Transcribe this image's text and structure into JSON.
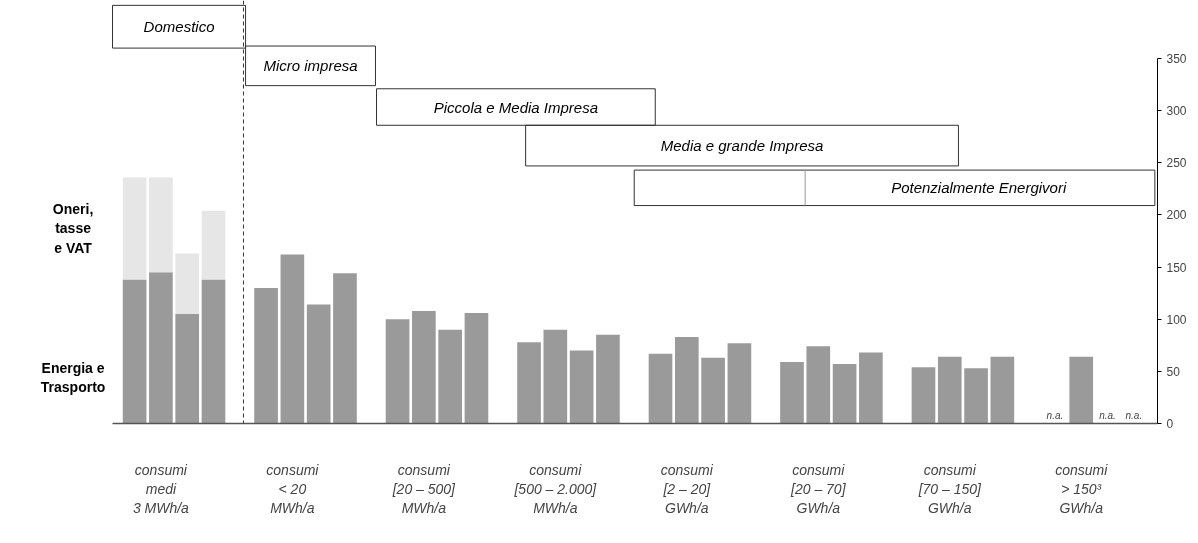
{
  "chart_data": {
    "type": "bar",
    "categories": [
      null,
      "consumi\nmedi\n3 MWh/a",
      null,
      null,
      null,
      null,
      "consumi\n< 20\nMWh/a",
      null,
      null,
      null,
      null,
      "consumi\n[20 – 500]\nMWh/a",
      null,
      null,
      null,
      null,
      "consumi\n[500 – 2.000]\nMWh/a",
      null,
      null,
      null,
      null,
      "consumi\n[2 – 20]\nGWh/a",
      null,
      null,
      null,
      null,
      "consumi\n[20 – 70]\nGWh/a",
      null,
      null,
      null,
      null,
      "consumi\n[70 – 150]\nGWh/a",
      null,
      null,
      null,
      null,
      "consumi\n> 150³\nGWh/a",
      null,
      null
    ],
    "series": [
      {
        "name": "Energia e\nTrasporto",
        "color": "#9a9a9a",
        "values": [
          138,
          145,
          105,
          138,
          null,
          130,
          162,
          114,
          144,
          null,
          100,
          108,
          90,
          106,
          null,
          78,
          90,
          70,
          85,
          null,
          67,
          83,
          63,
          77,
          null,
          59,
          74,
          57,
          68,
          null,
          54,
          64,
          53,
          64,
          null,
          null,
          64,
          null,
          null
        ],
        "value_labels": [
          null,
          null,
          null,
          null,
          null,
          null,
          null,
          null,
          null,
          null,
          null,
          null,
          null,
          null,
          null,
          null,
          null,
          null,
          null,
          null,
          null,
          null,
          null,
          null,
          null,
          null,
          null,
          null,
          null,
          null,
          null,
          null,
          null,
          null,
          null,
          "n.a.",
          null,
          "n.a.",
          "n.a."
        ]
      },
      {
        "name": "Oneri,\ntasse\ne VAT",
        "color": "#e6e6e6",
        "values": [
          98,
          91,
          58,
          66,
          null,
          null,
          null,
          null,
          null,
          null,
          null,
          null,
          null,
          null,
          null,
          null,
          null,
          null,
          null,
          null,
          null,
          null,
          null,
          null,
          null,
          null,
          null,
          null,
          null,
          null,
          null,
          null,
          null,
          null,
          null,
          null,
          null,
          null,
          null
        ]
      }
    ],
    "stacked": true,
    "ylim": [
      0,
      350
    ],
    "yticks": [
      0,
      50,
      100,
      150,
      200,
      250,
      300,
      350
    ],
    "annotations": [
      "Domestico",
      "Micro impresa",
      "Piccola e Media Impresa",
      "Media e grande Impresa",
      "Potenzialmente Energivori"
    ]
  }
}
